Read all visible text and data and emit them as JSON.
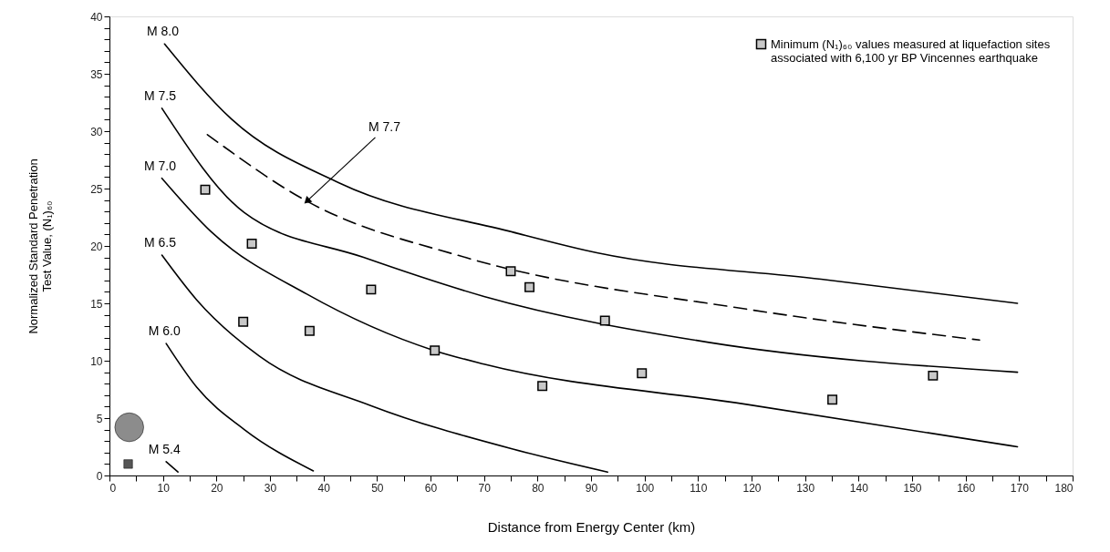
{
  "chart_data": {
    "type": "line",
    "xlabel": "Distance from Energy Center (km)",
    "ylabel": "Normalized Standard Penetration\nTest Value, (N₁)₆₀",
    "xlim": [
      0,
      180
    ],
    "ylim": [
      0,
      40
    ],
    "xticks": [
      0,
      {
        "value": 5,
        "label": null
      },
      10,
      {
        "value": 15,
        "label": null
      },
      20,
      {
        "value": 25,
        "label": null
      },
      30,
      {
        "value": 35,
        "label": null
      },
      40,
      {
        "value": 45,
        "label": null
      },
      50,
      {
        "value": 55,
        "label": null
      },
      60,
      {
        "value": 65,
        "label": null
      },
      70,
      {
        "value": 75,
        "label": null
      },
      80,
      {
        "value": 85,
        "label": null
      },
      90,
      {
        "value": 95,
        "label": null
      },
      100,
      {
        "value": 105,
        "label": null
      },
      110,
      {
        "value": 115,
        "label": null
      },
      120,
      {
        "value": 125,
        "label": null
      },
      130,
      {
        "value": 135,
        "label": null
      },
      140,
      {
        "value": 145,
        "label": null
      },
      150,
      {
        "value": 155,
        "label": null
      },
      160,
      {
        "value": 165,
        "label": null
      },
      170,
      {
        "value": 175,
        "label": null
      },
      180
    ],
    "yticks": [
      0,
      {
        "value": 1,
        "label": null
      },
      {
        "value": 2,
        "label": null
      },
      {
        "value": 3,
        "label": null
      },
      {
        "value": 4,
        "label": null
      },
      5,
      {
        "value": 6,
        "label": null
      },
      {
        "value": 7,
        "label": null
      },
      {
        "value": 8,
        "label": null
      },
      {
        "value": 9,
        "label": null
      },
      10,
      {
        "value": 11,
        "label": null
      },
      {
        "value": 12,
        "label": null
      },
      {
        "value": 13,
        "label": null
      },
      {
        "value": 14,
        "label": null
      },
      15,
      {
        "value": 16,
        "label": null
      },
      {
        "value": 17,
        "label": null
      },
      {
        "value": 18,
        "label": null
      },
      {
        "value": 19,
        "label": null
      },
      20,
      {
        "value": 21,
        "label": null
      },
      {
        "value": 22,
        "label": null
      },
      {
        "value": 23,
        "label": null
      },
      {
        "value": 24,
        "label": null
      },
      25,
      {
        "value": 26,
        "label": null
      },
      {
        "value": 27,
        "label": null
      },
      {
        "value": 28,
        "label": null
      },
      {
        "value": 29,
        "label": null
      },
      30,
      {
        "value": 31,
        "label": null
      },
      {
        "value": 32,
        "label": null
      },
      {
        "value": 33,
        "label": null
      },
      {
        "value": 34,
        "label": null
      },
      35,
      {
        "value": 36,
        "label": null
      },
      {
        "value": 37,
        "label": null
      },
      {
        "value": 38,
        "label": null
      },
      {
        "value": 39,
        "label": null
      },
      40
    ],
    "grid": false,
    "legend": "top right",
    "marker": "none",
    "line_style": "solid",
    "series": [
      {
        "name": "M 8.0",
        "color": "#000000",
        "x": [
          10.3,
          22.7,
          42.9,
          75.4,
          91.1,
          133,
          169.7
        ],
        "values": [
          37.6,
          31.1,
          25.5,
          21.2,
          19.4,
          17.1,
          15.0
        ]
      },
      {
        "name": "M 7.7",
        "color": "#000000",
        "line_style": "dashed",
        "x": [
          18.3,
          36.9,
          66.5,
          119,
          162.6
        ],
        "values": [
          29.7,
          23.9,
          19.0,
          14.5,
          11.8
        ]
      },
      {
        "name": "M 7.5",
        "color": "#000000",
        "x": [
          9.8,
          25.2,
          47.5,
          70,
          112,
          169.7
        ],
        "values": [
          32.0,
          22.9,
          19.0,
          15.6,
          11.6,
          9.0
        ]
      },
      {
        "name": "M 7.0",
        "color": "#000000",
        "x": [
          9.8,
          19.1,
          36.9,
          60.6,
          70,
          119,
          169.7
        ],
        "values": [
          25.9,
          21.2,
          15.8,
          10.9,
          9.7,
          6.2,
          2.5
        ]
      },
      {
        "name": "M 6.5",
        "color": "#000000",
        "x": [
          9.8,
          16.3,
          28,
          48.8,
          75.4,
          93.1
        ],
        "values": [
          19.2,
          15.3,
          10.4,
          6.1,
          2.3,
          0.3
        ]
      },
      {
        "name": "M 6.0",
        "color": "#000000",
        "x": [
          10.6,
          16.3,
          25.2,
          38.1
        ],
        "values": [
          11.5,
          7.7,
          4.0,
          0.4
        ]
      },
      {
        "name": "M 5.4",
        "color": "#000000",
        "x": [
          10.6,
          12.8
        ],
        "values": [
          1.2,
          0.3
        ]
      },
      {
        "type": "scatter",
        "marker": "circle",
        "color": "#8c8c8c",
        "x": [
          3.7
        ],
        "values": [
          4.2
        ]
      },
      {
        "type": "scatter",
        "marker": "square",
        "color": "#555555",
        "x": [
          3.5
        ],
        "values": [
          1.0
        ]
      },
      {
        "type": "scatter",
        "marker": "square",
        "color": "#c8c8c8",
        "name": "Minimum (N₁)₆₀ values measured at liquefaction sites\nassociated with 6,100 yr BP Vincennes earthquake",
        "x": [
          17.9,
          25.0,
          26.6,
          37.4,
          48.9,
          60.8,
          75.0,
          78.5,
          92.6,
          80.9,
          99.5,
          135.1,
          153.9
        ],
        "values": [
          24.9,
          13.4,
          20.2,
          12.6,
          16.2,
          10.9,
          17.8,
          16.4,
          13.5,
          7.8,
          8.9,
          6.6,
          8.7
        ]
      }
    ]
  }
}
